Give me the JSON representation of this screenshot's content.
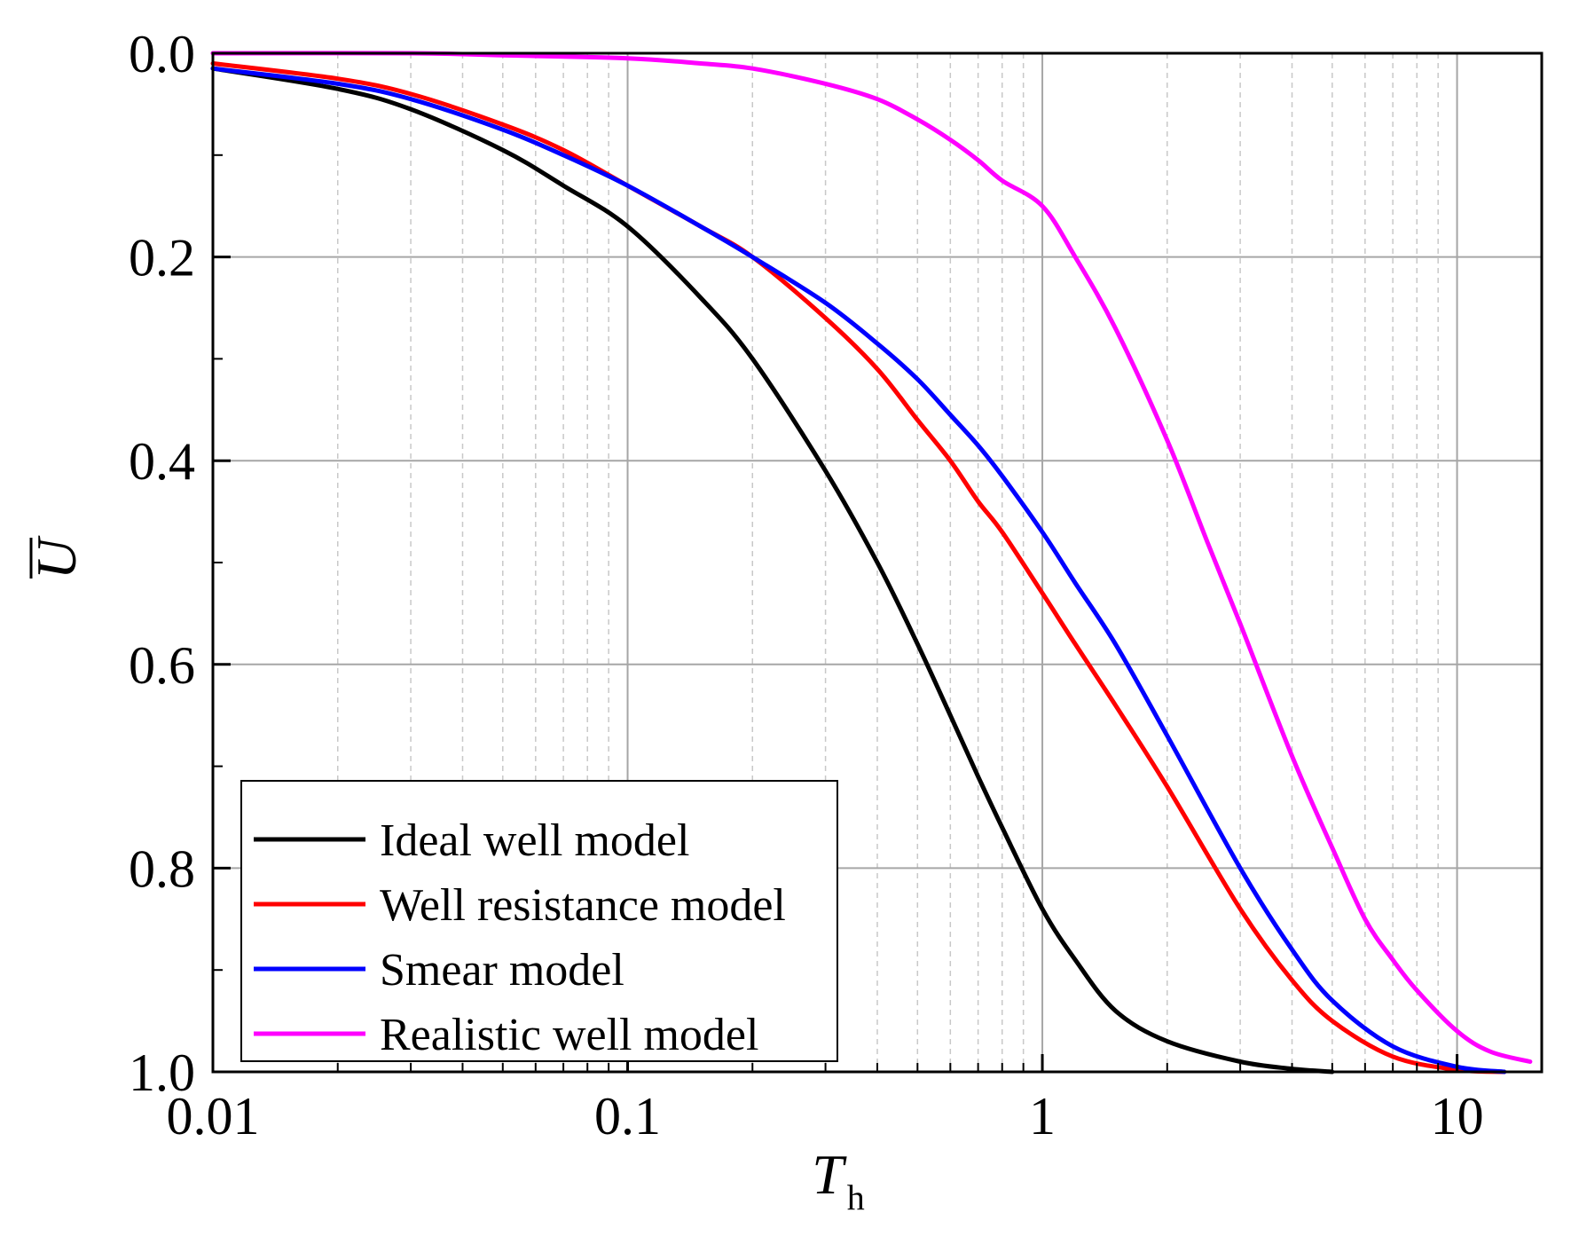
{
  "chart_data": {
    "type": "line",
    "title": "",
    "xlabel": "T",
    "xlabel_subscript": "h",
    "ylabel": "U",
    "xscale": "log",
    "xlim": [
      0.01,
      16
    ],
    "ylim": [
      0.0,
      1.0
    ],
    "y_inverted": true,
    "grid": true,
    "legend_position": "bottom-left",
    "x_ticks": [
      0.01,
      0.1,
      1,
      10
    ],
    "x_tick_labels": [
      "0.01",
      "0.1",
      "1",
      "10"
    ],
    "y_ticks": [
      0.0,
      0.2,
      0.4,
      0.6,
      0.8,
      1.0
    ],
    "y_tick_labels": [
      "0.0",
      "0.2",
      "0.4",
      "0.6",
      "0.8",
      "1.0"
    ],
    "series": [
      {
        "name": "Ideal well model",
        "color": "#000000",
        "x": [
          0.01,
          0.02,
          0.03,
          0.05,
          0.07,
          0.1,
          0.15,
          0.2,
          0.3,
          0.4,
          0.5,
          0.6,
          0.7,
          0.8,
          1.0,
          1.2,
          1.5,
          2.0,
          3.0,
          4.0,
          5.0
        ],
        "y": [
          0.015,
          0.035,
          0.055,
          0.095,
          0.13,
          0.17,
          0.24,
          0.3,
          0.41,
          0.5,
          0.58,
          0.65,
          0.71,
          0.76,
          0.84,
          0.89,
          0.94,
          0.97,
          0.99,
          0.997,
          1.0
        ]
      },
      {
        "name": "Well resistance model",
        "color": "#ff0000",
        "x": [
          0.01,
          0.02,
          0.03,
          0.05,
          0.07,
          0.1,
          0.15,
          0.2,
          0.3,
          0.4,
          0.5,
          0.6,
          0.7,
          0.8,
          1.0,
          1.2,
          1.5,
          2.0,
          3.0,
          4.0,
          5.0,
          7.0,
          10.0,
          13.0
        ],
        "y": [
          0.01,
          0.025,
          0.04,
          0.07,
          0.095,
          0.13,
          0.17,
          0.2,
          0.26,
          0.31,
          0.36,
          0.4,
          0.44,
          0.47,
          0.53,
          0.58,
          0.64,
          0.72,
          0.84,
          0.91,
          0.95,
          0.985,
          0.998,
          1.0
        ]
      },
      {
        "name": "Smear model",
        "color": "#0000ff",
        "x": [
          0.01,
          0.02,
          0.03,
          0.05,
          0.07,
          0.1,
          0.15,
          0.2,
          0.3,
          0.4,
          0.5,
          0.6,
          0.7,
          0.8,
          1.0,
          1.2,
          1.5,
          2.0,
          3.0,
          4.0,
          5.0,
          7.0,
          10.0,
          13.0
        ],
        "y": [
          0.015,
          0.03,
          0.045,
          0.075,
          0.1,
          0.13,
          0.17,
          0.2,
          0.245,
          0.285,
          0.32,
          0.355,
          0.385,
          0.415,
          0.47,
          0.52,
          0.58,
          0.67,
          0.8,
          0.88,
          0.93,
          0.975,
          0.995,
          1.0
        ]
      },
      {
        "name": "Realistic well model",
        "color": "#ff00ff",
        "x": [
          0.01,
          0.03,
          0.05,
          0.1,
          0.15,
          0.2,
          0.3,
          0.4,
          0.5,
          0.6,
          0.7,
          0.8,
          1.0,
          1.2,
          1.5,
          2.0,
          2.5,
          3.0,
          4.0,
          5.0,
          6.0,
          7.0,
          8.0,
          10.0,
          12.0,
          15.0
        ],
        "y": [
          0.0,
          0.0,
          0.002,
          0.005,
          0.01,
          0.015,
          0.03,
          0.045,
          0.065,
          0.085,
          0.105,
          0.125,
          0.15,
          0.2,
          0.27,
          0.38,
          0.48,
          0.56,
          0.69,
          0.78,
          0.85,
          0.89,
          0.92,
          0.96,
          0.98,
          0.99
        ]
      }
    ]
  }
}
